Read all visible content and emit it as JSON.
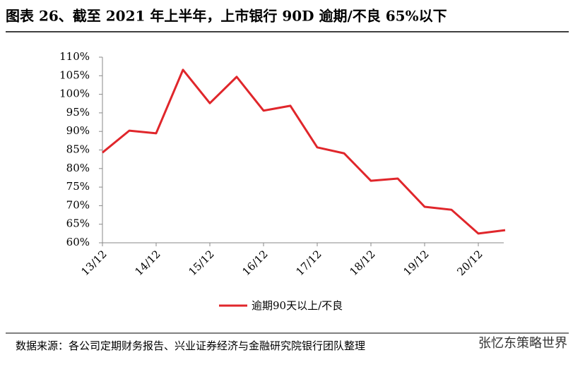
{
  "chart_data": {
    "type": "line",
    "title": "图表 26、截至 2021 年上半年，上市银行 90D 逾期/不良 65%以下",
    "categories": [
      "13/12",
      null,
      "14/12",
      null,
      "15/12",
      null,
      "16/12",
      null,
      "17/12",
      null,
      "18/12",
      null,
      "19/12",
      null,
      "20/12",
      null
    ],
    "series": [
      {
        "name": "逾期90天以上/不良",
        "color": "#e0262b",
        "values": [
          84.3,
          90.2,
          89.5,
          106.6,
          97.6,
          104.7,
          95.6,
          96.9,
          85.7,
          84.1,
          76.7,
          77.3,
          69.7,
          68.9,
          62.5,
          63.4
        ]
      }
    ],
    "ylim": [
      60,
      110
    ],
    "yticks": [
      {
        "value": 60,
        "label": "60%"
      },
      {
        "value": 65,
        "label": "65%"
      },
      {
        "value": 70,
        "label": "70%"
      },
      {
        "value": 75,
        "label": "75%"
      },
      {
        "value": 80,
        "label": "80%"
      },
      {
        "value": 85,
        "label": "85%"
      },
      {
        "value": 90,
        "label": "90%"
      },
      {
        "value": 95,
        "label": "95%"
      },
      {
        "value": 100,
        "label": "100%"
      },
      {
        "value": 105,
        "label": "105%"
      },
      {
        "value": 110,
        "label": "110%"
      }
    ],
    "legend": "bottom",
    "source": "数据来源：各公司定期财务报告、兴业证券经济与金融研究院银行团队整理",
    "watermark": "张忆东策略世界"
  }
}
